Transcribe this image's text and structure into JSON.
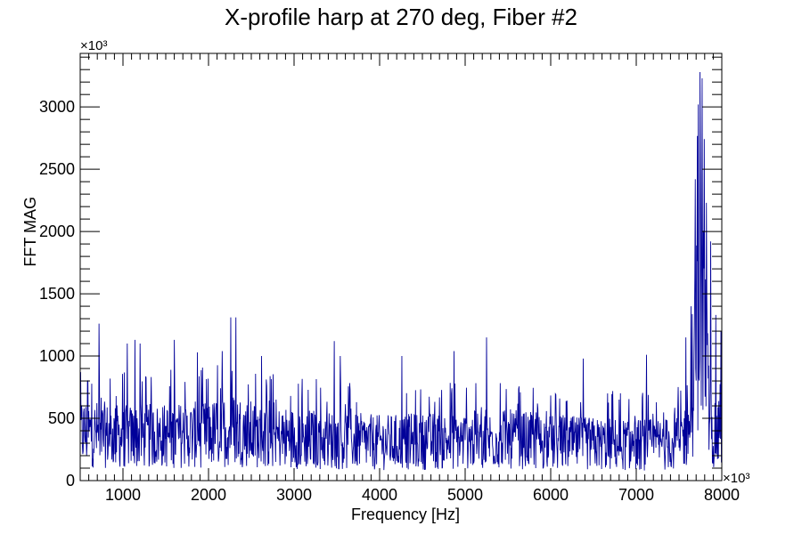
{
  "chart_data": {
    "type": "line",
    "title": "X-profile harp at 270 deg, Fiber #2",
    "xlabel": "Frequency [Hz]",
    "ylabel": "FFT MAG",
    "x_multiplier": "×10³",
    "y_multiplier": "×10³",
    "xlim": [
      500,
      8000
    ],
    "ylim": [
      0,
      3430
    ],
    "x_ticks": [
      1000,
      2000,
      3000,
      4000,
      5000,
      6000,
      7000,
      8000
    ],
    "y_ticks": [
      0,
      500,
      1000,
      1500,
      2000,
      2500,
      3000
    ],
    "grid": false,
    "legend": "none",
    "series": [
      {
        "color": "#000099",
        "x_start": 500,
        "x_step": 5,
        "baseline_profile": [
          [
            500,
            420
          ],
          [
            1000,
            380
          ],
          [
            1500,
            390
          ],
          [
            2000,
            400
          ],
          [
            2300,
            450
          ],
          [
            2600,
            380
          ],
          [
            3000,
            370
          ],
          [
            3500,
            350
          ],
          [
            4000,
            330
          ],
          [
            4500,
            340
          ],
          [
            5000,
            350
          ],
          [
            5500,
            360
          ],
          [
            6000,
            330
          ],
          [
            6500,
            320
          ],
          [
            7000,
            310
          ],
          [
            7400,
            320
          ],
          [
            7600,
            400
          ],
          [
            7680,
            800
          ],
          [
            7720,
            1500
          ],
          [
            7750,
            1700
          ],
          [
            7800,
            1200
          ],
          [
            7850,
            600
          ],
          [
            7900,
            400
          ],
          [
            8000,
            350
          ]
        ],
        "peaks": [
          [
            590,
            800
          ],
          [
            720,
            1260
          ],
          [
            1050,
            1100
          ],
          [
            1140,
            1130
          ],
          [
            1200,
            1100
          ],
          [
            1600,
            1130
          ],
          [
            1870,
            1030
          ],
          [
            2160,
            1040
          ],
          [
            2260,
            1310
          ],
          [
            2320,
            1310
          ],
          [
            2620,
            1000
          ],
          [
            3470,
            1120
          ],
          [
            3540,
            1000
          ],
          [
            4260,
            1000
          ],
          [
            4870,
            1040
          ],
          [
            5250,
            1150
          ],
          [
            6380,
            980
          ],
          [
            7120,
            1010
          ],
          [
            7580,
            1150
          ],
          [
            7640,
            1400
          ],
          [
            7690,
            2420
          ],
          [
            7725,
            3020
          ],
          [
            7745,
            3280
          ],
          [
            7770,
            3230
          ],
          [
            7820,
            2230
          ],
          [
            7870,
            1920
          ],
          [
            7930,
            1330
          ],
          [
            7990,
            1200
          ]
        ]
      }
    ]
  }
}
